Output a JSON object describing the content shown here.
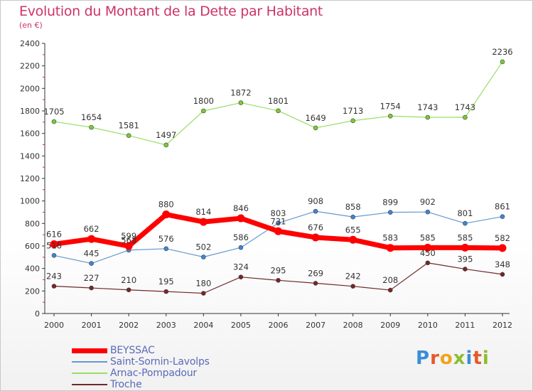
{
  "title": "Evolution du Montant de la Dette par Habitant",
  "subtitle": "(en €)",
  "logo": {
    "letters": [
      "P",
      "r",
      "o",
      "x",
      "i",
      "t",
      "i"
    ],
    "colors": [
      "#3a8ed6",
      "#e8582a",
      "#f0a31a",
      "#8bbf2f",
      "#3a8ed6",
      "#e8582a",
      "#8bbf2f"
    ]
  },
  "chart_data": {
    "type": "line",
    "title": "Evolution du Montant de la Dette par Habitant",
    "subtitle": "(en €)",
    "x": [
      "2000",
      "2001",
      "2002",
      "2003",
      "2004",
      "2005",
      "2006",
      "2007",
      "2008",
      "2009",
      "2010",
      "2011",
      "2012"
    ],
    "ylim": [
      0,
      2400
    ],
    "yticks": [
      "0",
      "200",
      "400",
      "600",
      "800",
      "1000",
      "1200",
      "1400",
      "1600",
      "1800",
      "2000",
      "2200",
      "2400"
    ],
    "grid": false,
    "legend_position": "bottom-left",
    "series": [
      {
        "name": "Troche",
        "color": "#6e2a2a",
        "dot": "#7a2424",
        "width": 1.2,
        "values": [
          243,
          227,
          210,
          195,
          180,
          324,
          295,
          269,
          242,
          208,
          450,
          395,
          348
        ],
        "labels": [
          "243",
          "227",
          "210",
          "195",
          "180",
          "324",
          "295",
          "269",
          "242",
          "208",
          "450",
          "395",
          "348"
        ]
      },
      {
        "name": "Arnac-Pompadour",
        "color": "#99dd66",
        "dot": "#77cc33",
        "width": 1.2,
        "values": [
          1705,
          1654,
          1581,
          1497,
          1800,
          1872,
          1801,
          1649,
          1713,
          1754,
          1743,
          1743,
          2236
        ],
        "labels": [
          "1705",
          "1654",
          "1581",
          "1497",
          "1800",
          "1872",
          "1801",
          "1649",
          "1713",
          "1754",
          "1743",
          "1743",
          "2236"
        ]
      },
      {
        "name": "Saint-Sornin-Lavolps",
        "color": "#6699cc",
        "dot": "#3d86d6",
        "width": 1.2,
        "values": [
          516,
          445,
          563,
          576,
          502,
          586,
          803,
          908,
          858,
          899,
          902,
          801,
          861
        ],
        "labels": [
          "516",
          "445",
          "563",
          "576",
          "502",
          "586",
          "803",
          "908",
          "858",
          "899",
          "902",
          "801",
          "861"
        ]
      },
      {
        "name": "BEYSSAC",
        "color": "#ff0000",
        "dot": "#ff0000",
        "width": 7,
        "values": [
          616,
          662,
          599,
          880,
          814,
          846,
          731,
          676,
          655,
          583,
          585,
          585,
          582
        ],
        "labels": [
          "616",
          "662",
          "599",
          "880",
          "814",
          "846",
          "731",
          "676",
          "655",
          "583",
          "585",
          "585",
          "582"
        ]
      }
    ],
    "legend": [
      {
        "name": "BEYSSAC",
        "color": "#ff0000",
        "width": 7
      },
      {
        "name": "Saint-Sornin-Lavolps",
        "color": "#6699cc",
        "width": 2
      },
      {
        "name": "Arnac-Pompadour",
        "color": "#99dd66",
        "width": 2
      },
      {
        "name": "Troche",
        "color": "#6e2a2a",
        "width": 2
      }
    ]
  }
}
